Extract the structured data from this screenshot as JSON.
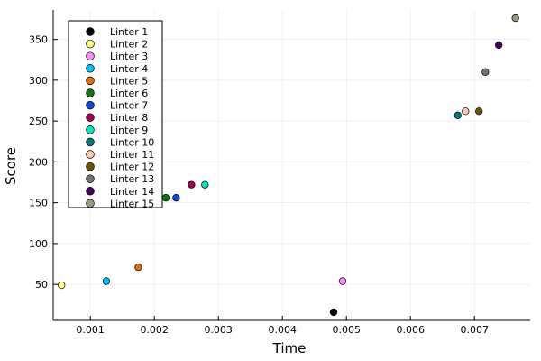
{
  "chart_data": {
    "type": "scatter",
    "xlabel": "Time",
    "ylabel": "Score",
    "xlim": [
      0.00042,
      0.00787
    ],
    "ylim": [
      6,
      386
    ],
    "xticks": [
      0.001,
      0.002,
      0.003,
      0.004,
      0.005,
      0.006,
      0.007
    ],
    "xtick_labels": [
      "0.001",
      "0.002",
      "0.003",
      "0.004",
      "0.005",
      "0.006",
      "0.007"
    ],
    "yticks": [
      50,
      100,
      150,
      200,
      250,
      300,
      350
    ],
    "ytick_labels": [
      "50",
      "100",
      "150",
      "200",
      "250",
      "300",
      "350"
    ],
    "grid": true,
    "legend_position": "top-left",
    "series": [
      {
        "name": "Linter 1",
        "color": "#000000",
        "x": 0.0048,
        "y": 16
      },
      {
        "name": "Linter 2",
        "color": "#ffff77",
        "x": 0.00055,
        "y": 49
      },
      {
        "name": "Linter 3",
        "color": "#ff88ff",
        "x": 0.00494,
        "y": 54
      },
      {
        "name": "Linter 4",
        "color": "#00c2ff",
        "x": 0.00125,
        "y": 54
      },
      {
        "name": "Linter 5",
        "color": "#e36a0a",
        "x": 0.00175,
        "y": 71
      },
      {
        "name": "Linter 6",
        "color": "#0e7a0e",
        "x": 0.00218,
        "y": 156
      },
      {
        "name": "Linter 7",
        "color": "#0c46e0",
        "x": 0.00234,
        "y": 156
      },
      {
        "name": "Linter 8",
        "color": "#a8004e",
        "x": 0.00258,
        "y": 172
      },
      {
        "name": "Linter 9",
        "color": "#00e6c0",
        "x": 0.00279,
        "y": 172
      },
      {
        "name": "Linter 10",
        "color": "#007a78",
        "x": 0.00674,
        "y": 257
      },
      {
        "name": "Linter 11",
        "color": "#ffc7aa",
        "x": 0.00686,
        "y": 262
      },
      {
        "name": "Linter 12",
        "color": "#6e5400",
        "x": 0.00707,
        "y": 262
      },
      {
        "name": "Linter 13",
        "color": "#72727a",
        "x": 0.00717,
        "y": 310
      },
      {
        "name": "Linter 14",
        "color": "#4a0061",
        "x": 0.00738,
        "y": 343
      },
      {
        "name": "Linter 15",
        "color": "#999a78",
        "x": 0.00764,
        "y": 376
      }
    ]
  }
}
